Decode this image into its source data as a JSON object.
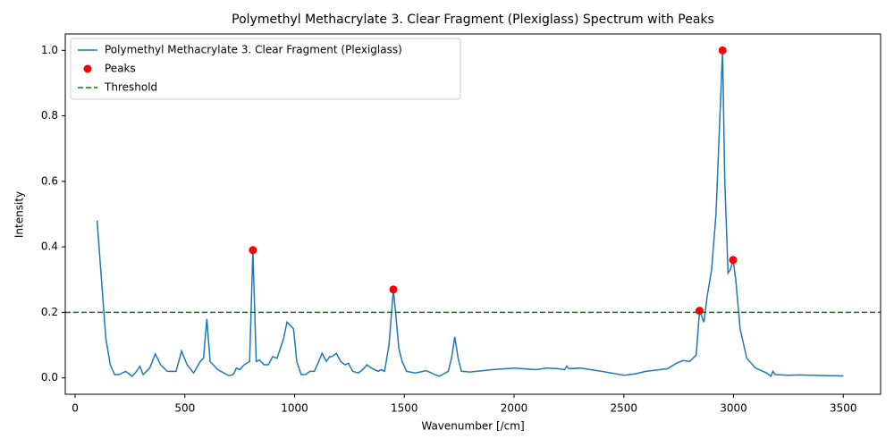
{
  "chart_data": {
    "type": "line",
    "title": "Polymethyl Methacrylate 3. Clear Fragment (Plexiglass) Spectrum with Peaks",
    "x_label": "Wavenumber [/cm]",
    "y_label": "Intensity",
    "xlim": [
      -45,
      3670
    ],
    "ylim": [
      -0.05,
      1.05
    ],
    "xticks": [
      0,
      500,
      1000,
      1500,
      2000,
      2500,
      3000,
      3500
    ],
    "yticks": [
      {
        "value": 0.0,
        "label": "0.0"
      },
      0.2,
      0.4,
      0.6,
      0.8,
      {
        "value": 1.0,
        "label": "1.0"
      }
    ],
    "legend": "upper left",
    "series": [
      {
        "name": "Polymethyl Methacrylate 3. Clear Fragment (Plexiglass)",
        "color": "#1f77b4",
        "type": "line",
        "x": [
          100,
          120,
          140,
          160,
          180,
          200,
          230,
          260,
          280,
          295,
          310,
          340,
          365,
          390,
          420,
          460,
          485,
          510,
          540,
          570,
          585,
          600,
          615,
          650,
          700,
          720,
          735,
          750,
          770,
          795,
          810,
          825,
          840,
          860,
          880,
          900,
          920,
          950,
          965,
          980,
          995,
          1010,
          1030,
          1050,
          1070,
          1090,
          1110,
          1125,
          1145,
          1160,
          1170,
          1190,
          1210,
          1230,
          1245,
          1265,
          1290,
          1310,
          1330,
          1350,
          1380,
          1395,
          1410,
          1430,
          1450,
          1460,
          1475,
          1490,
          1510,
          1550,
          1600,
          1640,
          1660,
          1700,
          1715,
          1730,
          1745,
          1760,
          1800,
          1900,
          2000,
          2100,
          2150,
          2200,
          2230,
          2240,
          2250,
          2300,
          2400,
          2500,
          2550,
          2600,
          2700,
          2740,
          2770,
          2800,
          2830,
          2845,
          2865,
          2880,
          2900,
          2920,
          2935,
          2950,
          2960,
          2975,
          2985,
          2998,
          3010,
          3030,
          3060,
          3100,
          3150,
          3170,
          3180,
          3190,
          3250,
          3300,
          3350,
          3500
        ],
        "values": [
          0.48,
          0.3,
          0.12,
          0.04,
          0.01,
          0.01,
          0.02,
          0.005,
          0.02,
          0.035,
          0.01,
          0.03,
          0.073,
          0.04,
          0.02,
          0.02,
          0.082,
          0.04,
          0.015,
          0.05,
          0.06,
          0.18,
          0.05,
          0.025,
          0.007,
          0.01,
          0.03,
          0.025,
          0.04,
          0.05,
          0.39,
          0.05,
          0.055,
          0.04,
          0.04,
          0.065,
          0.06,
          0.12,
          0.17,
          0.16,
          0.15,
          0.05,
          0.01,
          0.01,
          0.02,
          0.02,
          0.05,
          0.075,
          0.05,
          0.065,
          0.065,
          0.075,
          0.05,
          0.04,
          0.045,
          0.02,
          0.015,
          0.025,
          0.04,
          0.03,
          0.02,
          0.025,
          0.02,
          0.1,
          0.27,
          0.2,
          0.09,
          0.05,
          0.02,
          0.015,
          0.022,
          0.01,
          0.005,
          0.02,
          0.06,
          0.125,
          0.06,
          0.02,
          0.018,
          0.025,
          0.03,
          0.025,
          0.03,
          0.028,
          0.025,
          0.036,
          0.028,
          0.03,
          0.02,
          0.008,
          0.012,
          0.02,
          0.028,
          0.045,
          0.053,
          0.05,
          0.07,
          0.205,
          0.17,
          0.25,
          0.33,
          0.5,
          0.75,
          1.0,
          0.6,
          0.32,
          0.33,
          0.36,
          0.3,
          0.15,
          0.06,
          0.03,
          0.015,
          0.005,
          0.02,
          0.01,
          0.008,
          0.009,
          0.008,
          0.006
        ]
      },
      {
        "name": "Peaks",
        "color": "#ff0000",
        "type": "scatter",
        "x": [
          810,
          1450,
          2845,
          2950,
          2998
        ],
        "values": [
          0.39,
          0.27,
          0.205,
          1.0,
          0.36
        ]
      }
    ],
    "threshold": {
      "name": "Threshold",
      "value": 0.2,
      "color": "#008000"
    }
  }
}
